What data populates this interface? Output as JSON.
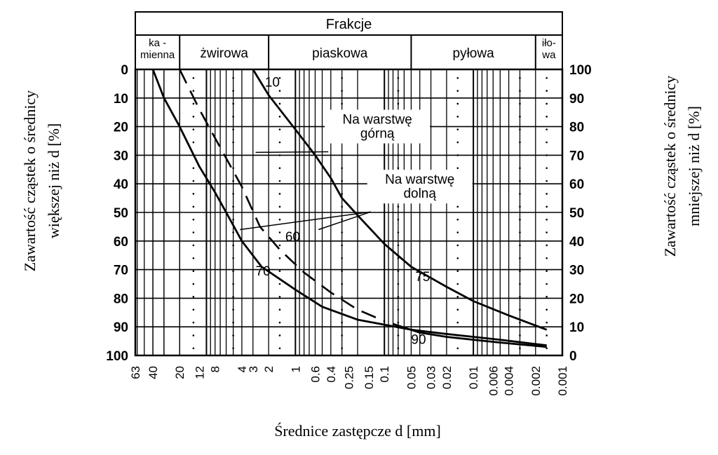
{
  "chart_data": {
    "type": "line",
    "header": {
      "title": "Frakcje",
      "fractions": [
        {
          "lines": [
            "ka -",
            "mienna"
          ],
          "from_mm": 63,
          "to_mm": 20
        },
        {
          "lines": [
            "żwirowa"
          ],
          "from_mm": 20,
          "to_mm": 2
        },
        {
          "lines": [
            "piaskowa"
          ],
          "from_mm": 2,
          "to_mm": 0.05
        },
        {
          "lines": [
            "pyłowa"
          ],
          "from_mm": 0.05,
          "to_mm": 0.002
        },
        {
          "lines": [
            "iło-",
            "wa"
          ],
          "from_mm": 0.002,
          "to_mm": 0.001
        }
      ]
    },
    "x_axis": {
      "label": "Średnice zastępcze d [mm]",
      "scale": "log-reversed",
      "range_mm": [
        63,
        0.001
      ],
      "ticks": [
        "63",
        "40",
        "20",
        "12",
        "8",
        "4",
        "3",
        "2",
        "1",
        "0.6",
        "0.4",
        "0.25",
        "0.15",
        "0.1",
        "0.05",
        "0.03",
        "0.02",
        "0.01",
        "0.006",
        "0.004",
        "0.002",
        "0.001"
      ]
    },
    "y_left": {
      "label_lines": [
        "Zawartość cząstek o średnicy",
        "większej niż d [%]"
      ],
      "ticks": [
        "0",
        "10",
        "20",
        "30",
        "40",
        "50",
        "60",
        "70",
        "80",
        "90",
        "100"
      ],
      "range": [
        0,
        100
      ]
    },
    "y_right": {
      "label_lines": [
        "Zawartość cząstek o średnicy",
        "mniejszej niż d [%]"
      ],
      "ticks": [
        "100",
        "90",
        "80",
        "70",
        "60",
        "50",
        "40",
        "30",
        "20",
        "10",
        "0"
      ],
      "range": [
        100,
        0
      ]
    },
    "series": [
      {
        "style": "solid",
        "end_label": "70",
        "label_at": [
          2.8,
          72
        ],
        "points": [
          [
            40,
            0
          ],
          [
            30,
            10
          ],
          [
            20,
            20
          ],
          [
            12,
            34
          ],
          [
            8,
            43
          ],
          [
            6,
            50
          ],
          [
            4,
            60
          ],
          [
            2.4,
            69
          ],
          [
            1,
            77
          ],
          [
            0.5,
            83
          ],
          [
            0.2,
            87.5
          ],
          [
            0.05,
            91
          ],
          [
            0.02,
            92.5
          ],
          [
            0.005,
            94.5
          ],
          [
            0.0015,
            96.5
          ]
        ]
      },
      {
        "style": "solid",
        "end_label": "10",
        "label_at": [
          2.2,
          6
        ],
        "points": [
          [
            3,
            0
          ],
          [
            2,
            9
          ],
          [
            1,
            21
          ],
          [
            0.6,
            30
          ],
          [
            0.4,
            38
          ],
          [
            0.3,
            45
          ],
          [
            0.2,
            51
          ],
          [
            0.1,
            61
          ],
          [
            0.05,
            69
          ],
          [
            0.02,
            76
          ],
          [
            0.01,
            81
          ],
          [
            0.004,
            86
          ],
          [
            0.0015,
            91
          ]
        ]
      },
      {
        "style": "dashed",
        "end_label": "60",
        "label_at": [
          1.3,
          60
        ],
        "points": [
          [
            20,
            0
          ],
          [
            12,
            14
          ],
          [
            8,
            24
          ],
          [
            4,
            41
          ],
          [
            2.5,
            55
          ],
          [
            1.5,
            63
          ],
          [
            0.8,
            71
          ],
          [
            0.4,
            78
          ],
          [
            0.2,
            84
          ],
          [
            0.1,
            88
          ]
        ]
      },
      {
        "style": "solid",
        "end_label": "90",
        "label_at": [
          0.05,
          96
        ],
        "points": [
          [
            0.08,
            89
          ],
          [
            0.04,
            92
          ],
          [
            0.02,
            93.5
          ],
          [
            0.01,
            94.5
          ],
          [
            0.005,
            95.5
          ],
          [
            0.0015,
            97
          ]
        ]
      },
      {
        "style": "solid",
        "end_label": "75",
        "label_at": [
          0.045,
          74
        ],
        "points": []
      }
    ],
    "annotations": [
      {
        "text_lines": [
          "Na warstwę",
          "górną"
        ],
        "anchor": [
          0.12,
          19
        ],
        "arrow_to": [
          [
            2.8,
            29
          ]
        ]
      },
      {
        "text_lines": [
          "Na warstwę",
          "dolną"
        ],
        "anchor": [
          0.04,
          40
        ],
        "arrow_to": [
          [
            4.2,
            56
          ],
          [
            0.55,
            56
          ]
        ]
      }
    ],
    "grid": true
  }
}
